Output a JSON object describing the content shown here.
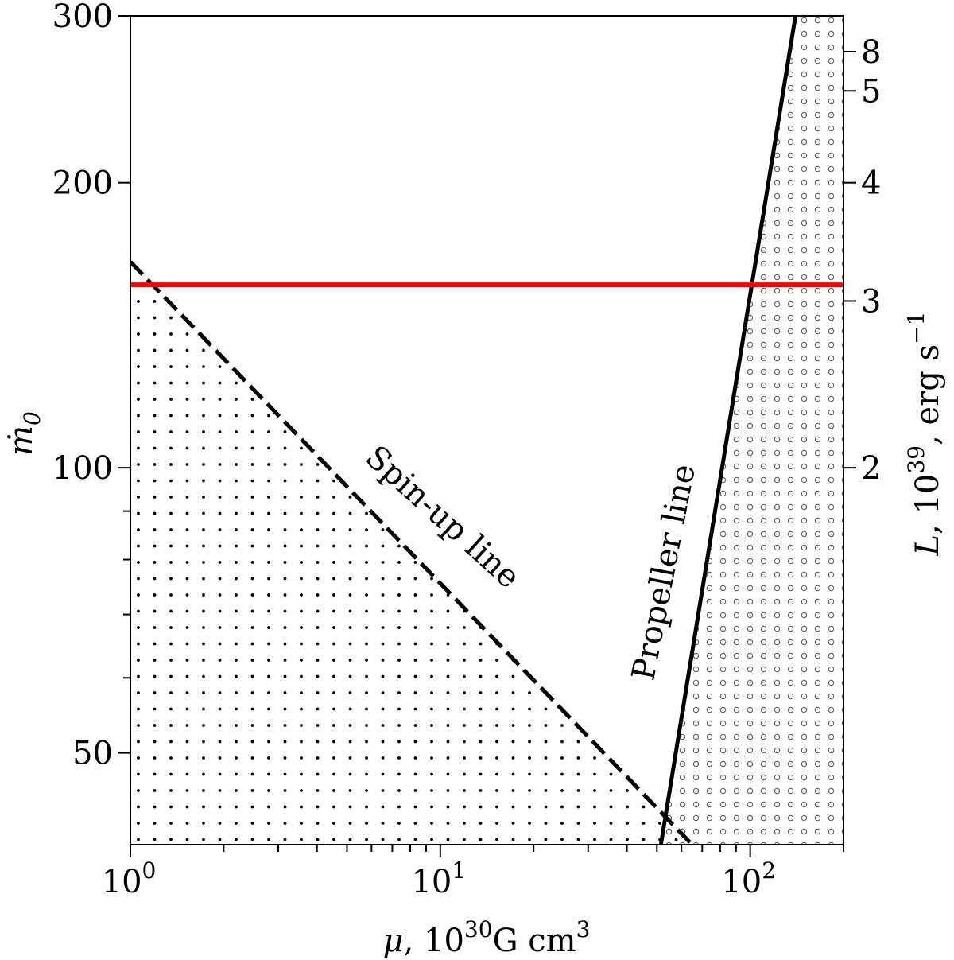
{
  "chart_data": {
    "type": "line",
    "x_axis": {
      "label_symbol": "μ",
      "label_unit_prefix": ", 10",
      "label_unit_exp": "30",
      "label_unit_g": "G cm",
      "label_unit_exp2": "3",
      "scale": "log",
      "range": [
        1,
        200
      ],
      "major_ticks": [
        {
          "value": 1,
          "base": "10",
          "exp": "0"
        },
        {
          "value": 10,
          "base": "10",
          "exp": "1"
        },
        {
          "value": 100,
          "base": "10",
          "exp": "2"
        }
      ],
      "minor_ticks": [
        2,
        3,
        4,
        5,
        6,
        7,
        8,
        9,
        20,
        30,
        40,
        50,
        60,
        70,
        80,
        90,
        200
      ]
    },
    "y_axis_left": {
      "label_symbol": "ṁ",
      "label_sub": "0",
      "scale": "log",
      "range": [
        40,
        300
      ],
      "major_ticks": [
        50,
        100,
        200,
        300
      ],
      "minor_ticks": [
        60,
        70,
        80,
        90
      ]
    },
    "y_axis_right": {
      "label_symbol": "L",
      "label_prefix": ", 10",
      "label_exp": "39",
      "label_unit": ",  erg s",
      "label_unit_exp": "−1",
      "scale": "log",
      "ticks": [
        {
          "label": "2",
          "at_mdot": 100
        },
        {
          "label": "3",
          "at_mdot": 150
        },
        {
          "label": "4",
          "at_mdot": 200
        },
        {
          "label": "5",
          "at_mdot": 250
        }
      ],
      "comment_ticks": [
        {
          "label": "8",
          "at_mdot": 400
        }
      ]
    },
    "series": [
      {
        "name": "Spin-up line",
        "style": "dashed",
        "color": "#000000",
        "points": [
          [
            1.0,
            165
          ],
          [
            65,
            40
          ]
        ]
      },
      {
        "name": "Propeller line",
        "style": "solid",
        "color": "#000000",
        "points": [
          [
            51.5,
            40
          ],
          [
            140,
            300
          ]
        ]
      },
      {
        "name": "",
        "style": "solid",
        "color": "#ff0000",
        "points": [
          [
            1.0,
            156
          ],
          [
            200,
            156
          ]
        ]
      }
    ],
    "annotations": [
      {
        "text": "Spin-up line"
      },
      {
        "text": "Propeller line"
      }
    ],
    "legend": "none",
    "grid": false
  }
}
